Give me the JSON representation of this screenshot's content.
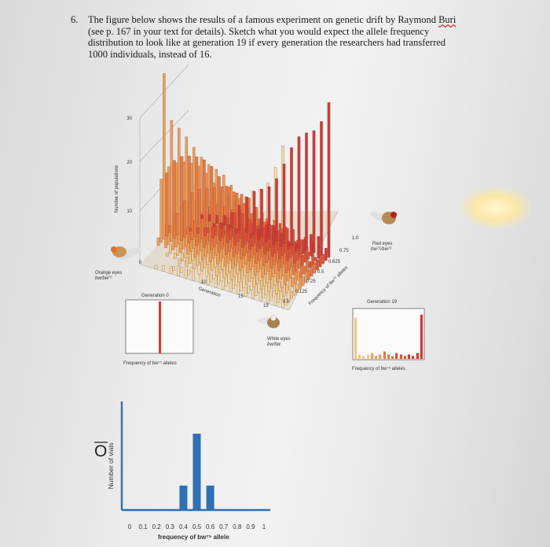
{
  "question": {
    "number": "6.",
    "text_before": "The figure below shows the results of a famous experiment on genetic drift by Raymond ",
    "text_name": "Buri",
    "text_after": " (see p. 167 in your text for details). Sketch what you would expect the allele frequency distribution to look like at generation 19 if every generation the researchers had transferred 1000 individuals, instead of 16."
  },
  "figure": {
    "y_axis_label": "Number of populations",
    "y_ticks": [
      "30",
      "20",
      "10",
      "0"
    ],
    "generation_axis_label": "Generation",
    "generation_ticks": [
      "10",
      "15",
      "19"
    ],
    "frequency_axis_label": "Frequency of bw⁷⁵ alleles",
    "frequency_ticks": [
      "1.0",
      "0.75",
      "0.625",
      "0.5",
      "0.25",
      "0.125",
      "0.0"
    ],
    "orange_label_1": "Orange eyes",
    "orange_label_2": "bw/bw⁷⁵",
    "red_label_1": "Red eyes",
    "red_label_2": "bw⁷⁵/bw⁷⁵",
    "white_label_1": "White eyes",
    "white_label_2": "bw/bw",
    "gen0_title": "Generation 0",
    "gen0_xlabel": "Frequency of bw⁷⁵ alleles",
    "gen19_title": "Generation 19",
    "gen19_xlabel": "Frequency of bw⁷⁵ alleles"
  },
  "sketch": {
    "ylabel": "Number of vials",
    "xlabel": "frequency of bw⁷⁵ allele",
    "ticks": [
      "0",
      "0.1",
      "0.2",
      "0.3",
      "0.4",
      "0.5",
      "0.6",
      "0.7",
      "0.8",
      "0.9",
      "1"
    ]
  },
  "chart_data": [
    {
      "type": "bar",
      "title": "Generation 19",
      "xlabel": "Frequency of bw⁷⁵ alleles",
      "x": [
        0,
        0.06,
        0.12,
        0.19,
        0.25,
        0.31,
        0.37,
        0.44,
        0.5,
        0.56,
        0.62,
        0.69,
        0.75,
        0.81,
        0.87,
        0.94,
        1
      ],
      "values": [
        28,
        3,
        2,
        3,
        4,
        2,
        3,
        5,
        3,
        2,
        4,
        3,
        2,
        3,
        2,
        4,
        30
      ]
    },
    {
      "type": "bar",
      "xlabel": "frequency of bw⁷⁵ allele",
      "ylabel": "Number of vials",
      "x": [
        0.4,
        0.5,
        0.6
      ],
      "values": [
        1,
        3.2,
        1
      ],
      "color": "#2f6fb3"
    }
  ]
}
